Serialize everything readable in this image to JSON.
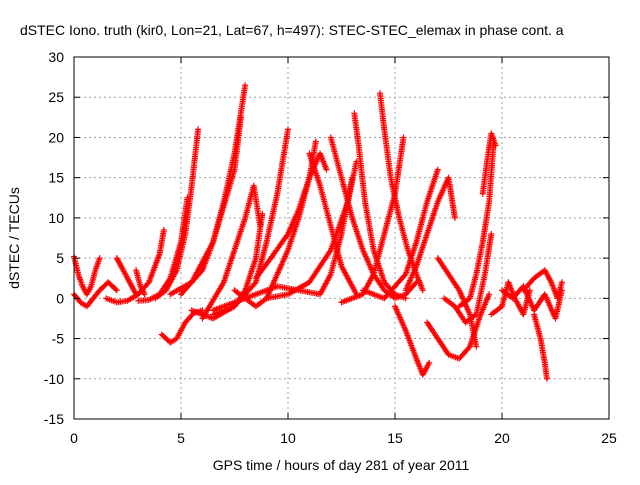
{
  "chart_data": {
    "type": "scatter",
    "title": "dSTEC Iono. truth (kir0, Lon=21, Lat=67, h=497): STEC-STEC_elemax in phase cont. a",
    "xlabel": "GPS time / hours of day 281 of year 2011",
    "ylabel": "dSTEC  / TECUs",
    "xlim": [
      0,
      25
    ],
    "ylim": [
      -15,
      30
    ],
    "x_ticks": [
      0,
      5,
      10,
      15,
      20,
      25
    ],
    "y_ticks": [
      -15,
      -10,
      -5,
      0,
      5,
      10,
      15,
      20,
      25,
      30
    ],
    "x_tick_labels": [
      "0",
      "5",
      "10",
      "15",
      "20",
      "25"
    ],
    "y_tick_labels": [
      "-15",
      "-10",
      "-5",
      "0",
      "5",
      "10",
      "15",
      "20",
      "25",
      "30"
    ],
    "grid": true,
    "marker": "+",
    "color": "#ff0000",
    "series": [
      {
        "x": [
          0.0,
          0.2,
          0.4,
          0.6,
          0.8,
          1.0,
          1.2
        ],
        "y": [
          5.2,
          3.0,
          1.5,
          0.5,
          1.5,
          3.5,
          5.0
        ]
      },
      {
        "x": [
          0.0,
          0.3,
          0.6,
          0.9,
          1.2,
          1.6,
          2.0
        ],
        "y": [
          0.5,
          -0.5,
          -1.0,
          0.0,
          1.0,
          2.0,
          1.0
        ]
      },
      {
        "x": [
          1.5,
          2.0,
          2.5,
          3.0,
          3.5,
          4.0,
          4.2
        ],
        "y": [
          0.0,
          -0.5,
          -0.3,
          0.5,
          2.0,
          5.5,
          8.5
        ]
      },
      {
        "x": [
          2.0,
          2.3,
          2.6,
          2.9
        ],
        "y": [
          5.0,
          3.5,
          2.0,
          0.5
        ]
      },
      {
        "x": [
          2.9,
          3.1,
          3.3
        ],
        "y": [
          3.5,
          1.5,
          0.5
        ]
      },
      {
        "x": [
          4.1,
          4.5,
          4.8,
          5.2,
          5.6,
          6.0
        ],
        "y": [
          -4.5,
          -5.5,
          -5.0,
          -3.0,
          -1.8,
          -1.5
        ]
      },
      {
        "x": [
          3.0,
          3.5,
          4.0,
          4.5,
          5.0,
          5.3
        ],
        "y": [
          -0.3,
          -0.2,
          0.5,
          2.5,
          7.0,
          12.5
        ]
      },
      {
        "x": [
          3.8,
          4.3,
          4.8,
          5.2,
          5.5,
          5.8
        ],
        "y": [
          0.0,
          1.0,
          3.5,
          8.0,
          14.0,
          21.0
        ]
      },
      {
        "x": [
          4.5,
          5.5,
          6.5,
          7.0,
          7.5,
          8.0
        ],
        "y": [
          0.5,
          2.0,
          7.0,
          12.0,
          18.0,
          26.5
        ]
      },
      {
        "x": [
          5.0,
          6.0,
          6.5,
          7.0,
          7.5,
          7.8
        ],
        "y": [
          0.5,
          3.5,
          7.0,
          11.5,
          16.0,
          22.5
        ]
      },
      {
        "x": [
          6.0,
          7.0,
          7.5,
          8.0,
          8.4,
          8.7
        ],
        "y": [
          -2.5,
          2.0,
          6.0,
          10.0,
          14.0,
          9.0
        ]
      },
      {
        "x": [
          5.5,
          6.5,
          7.5,
          8.5,
          9.0,
          9.5,
          10.0
        ],
        "y": [
          -1.5,
          -2.5,
          -1.0,
          2.0,
          7.0,
          13.0,
          21.0
        ]
      },
      {
        "x": [
          6.5,
          7.5,
          8.0,
          8.5,
          8.8
        ],
        "y": [
          -2.0,
          -1.0,
          1.0,
          5.0,
          10.5
        ]
      },
      {
        "x": [
          7.5,
          8.5,
          9.0,
          9.5,
          10.0,
          10.5,
          11.0,
          11.3
        ],
        "y": [
          1.0,
          -1.0,
          0.0,
          3.0,
          6.0,
          10.0,
          15.0,
          19.5
        ]
      },
      {
        "x": [
          8.5,
          9.2,
          10.0,
          10.5,
          11.0,
          11.5,
          11.8
        ],
        "y": [
          2.5,
          5.0,
          8.0,
          11.0,
          15.0,
          18.0,
          16.0
        ]
      },
      {
        "x": [
          6.5,
          7.5,
          8.5,
          9.5,
          10.5,
          11.5,
          12.0,
          12.5,
          13.0
        ],
        "y": [
          -1.5,
          -0.5,
          0.5,
          1.5,
          1.0,
          0.5,
          3.0,
          8.0,
          15.0
        ]
      },
      {
        "x": [
          11.0,
          11.5,
          12.0,
          12.5,
          13.0,
          13.2
        ],
        "y": [
          18.0,
          14.0,
          9.0,
          4.0,
          1.5,
          0.5
        ]
      },
      {
        "x": [
          9.0,
          10.0,
          11.0,
          12.0,
          12.8,
          13.2
        ],
        "y": [
          0.0,
          0.5,
          2.0,
          6.0,
          12.0,
          17.0
        ]
      },
      {
        "x": [
          13.1,
          13.3,
          13.6,
          14.0,
          14.5,
          15.0,
          15.5
        ],
        "y": [
          23.0,
          19.0,
          12.0,
          6.0,
          2.0,
          0.5,
          0.0
        ]
      },
      {
        "x": [
          12.0,
          12.5,
          13.0,
          13.5,
          14.0,
          14.5,
          15.0,
          15.5,
          16.0
        ],
        "y": [
          20.0,
          15.0,
          10.0,
          6.0,
          3.0,
          1.0,
          0.0,
          0.5,
          2.0
        ]
      },
      {
        "x": [
          14.3,
          14.5,
          14.8,
          15.2,
          15.6,
          16.0,
          16.3
        ],
        "y": [
          25.5,
          21.0,
          15.0,
          10.0,
          6.0,
          3.0,
          1.0
        ]
      },
      {
        "x": [
          12.5,
          13.5,
          14.0,
          14.5,
          15.0,
          15.4
        ],
        "y": [
          -0.5,
          0.5,
          3.0,
          8.0,
          13.0,
          20.0
        ]
      },
      {
        "x": [
          13.5,
          14.5,
          15.5,
          16.0,
          16.5,
          17.0
        ],
        "y": [
          1.0,
          0.0,
          3.0,
          7.0,
          12.0,
          16.0
        ]
      },
      {
        "x": [
          15.0,
          15.5,
          16.0,
          16.3,
          16.6
        ],
        "y": [
          -1.0,
          -4.0,
          -7.5,
          -9.5,
          -8.0
        ]
      },
      {
        "x": [
          15.5,
          16.0,
          16.5,
          17.0,
          17.5,
          17.8
        ],
        "y": [
          1.0,
          4.0,
          8.0,
          12.0,
          15.0,
          10.0
        ]
      },
      {
        "x": [
          17.0,
          17.5,
          18.0,
          18.5,
          18.8
        ],
        "y": [
          5.0,
          3.0,
          1.0,
          -2.0,
          -6.0
        ]
      },
      {
        "x": [
          16.5,
          17.0,
          17.5,
          18.0,
          18.5,
          19.0,
          19.4
        ],
        "y": [
          -3.0,
          -5.0,
          -7.0,
          -7.5,
          -6.0,
          -2.0,
          0.5
        ]
      },
      {
        "x": [
          17.3,
          17.8,
          18.3,
          18.8,
          19.2,
          19.5
        ],
        "y": [
          0.0,
          -1.0,
          -3.0,
          -2.0,
          3.0,
          8.0
        ]
      },
      {
        "x": [
          18.0,
          18.5,
          18.8,
          19.1,
          19.4,
          19.6
        ],
        "y": [
          -1.0,
          0.0,
          3.0,
          7.0,
          12.0,
          19.0
        ]
      },
      {
        "x": [
          19.1,
          19.3,
          19.5,
          19.7
        ],
        "y": [
          13.0,
          17.0,
          20.5,
          19.0
        ]
      },
      {
        "x": [
          19.5,
          20.0,
          20.3,
          20.6,
          21.0,
          21.3
        ],
        "y": [
          -2.0,
          -1.0,
          2.0,
          0.0,
          -2.0,
          1.0
        ]
      },
      {
        "x": [
          21.5,
          21.8,
          22.0,
          22.1
        ],
        "y": [
          -2.0,
          -5.0,
          -8.0,
          -10.0
        ]
      },
      {
        "x": [
          21.0,
          21.5,
          22.0,
          22.3,
          22.6,
          22.8
        ],
        "y": [
          1.0,
          2.5,
          3.5,
          2.0,
          0.0,
          2.0
        ]
      },
      {
        "x": [
          20.0,
          20.5,
          21.0,
          21.5,
          22.0,
          22.5,
          22.8
        ],
        "y": [
          1.0,
          0.0,
          1.5,
          -1.5,
          0.5,
          -2.5,
          1.0
        ]
      }
    ]
  }
}
